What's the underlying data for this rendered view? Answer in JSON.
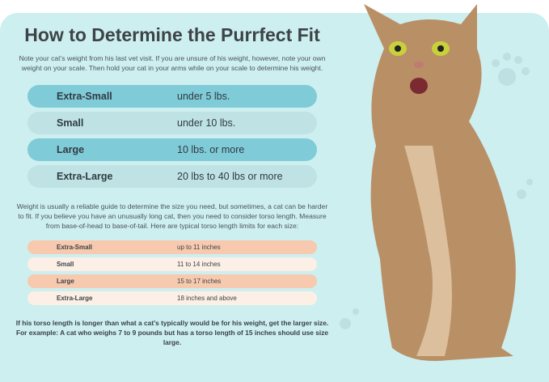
{
  "title": "How to Determine the Purrfect Fit",
  "intro": "Note your cat’s weight from his last vet visit. If you are unsure of his weight, however, note your own weight on your scale. Then hold your cat in your arms while on your scale to determine his weight.",
  "weight_sizes": [
    {
      "label": "Extra-Small",
      "value": "under 5 lbs."
    },
    {
      "label": "Small",
      "value": "under 10 lbs."
    },
    {
      "label": "Large",
      "value": "10 lbs. or more"
    },
    {
      "label": "Extra-Large",
      "value": "20 lbs to 40 lbs or more"
    }
  ],
  "torso_intro": "Weight is usually a reliable guide to determine the size you need, but sometimes, a cat can be harder to fit. If you believe you have an unusually long cat, then you need to consider torso length. Measure from base-of-head to base-of-tail. Here are typical torso length limits for each size:",
  "torso_sizes": [
    {
      "label": "Extra-Small",
      "value": "up to 11 inches"
    },
    {
      "label": "Small",
      "value": "11 to 14 inches"
    },
    {
      "label": "Large",
      "value": "15 to 17 inches"
    },
    {
      "label": "Extra-Large",
      "value": "18 inches and above"
    }
  ],
  "note": "If his torso length is longer than what a cat’s typically would be for his weight, get the larger size. For example: A cat who weighs 7 to 9 pounds but has a torso length of 15 inches should use size large.",
  "colors": {
    "panel": "#cdeff0",
    "weight_dark": "#80cbd8",
    "weight_light": "#bfe3e5",
    "torso_dark": "#f7c9ae",
    "torso_light": "#fcefe6"
  }
}
